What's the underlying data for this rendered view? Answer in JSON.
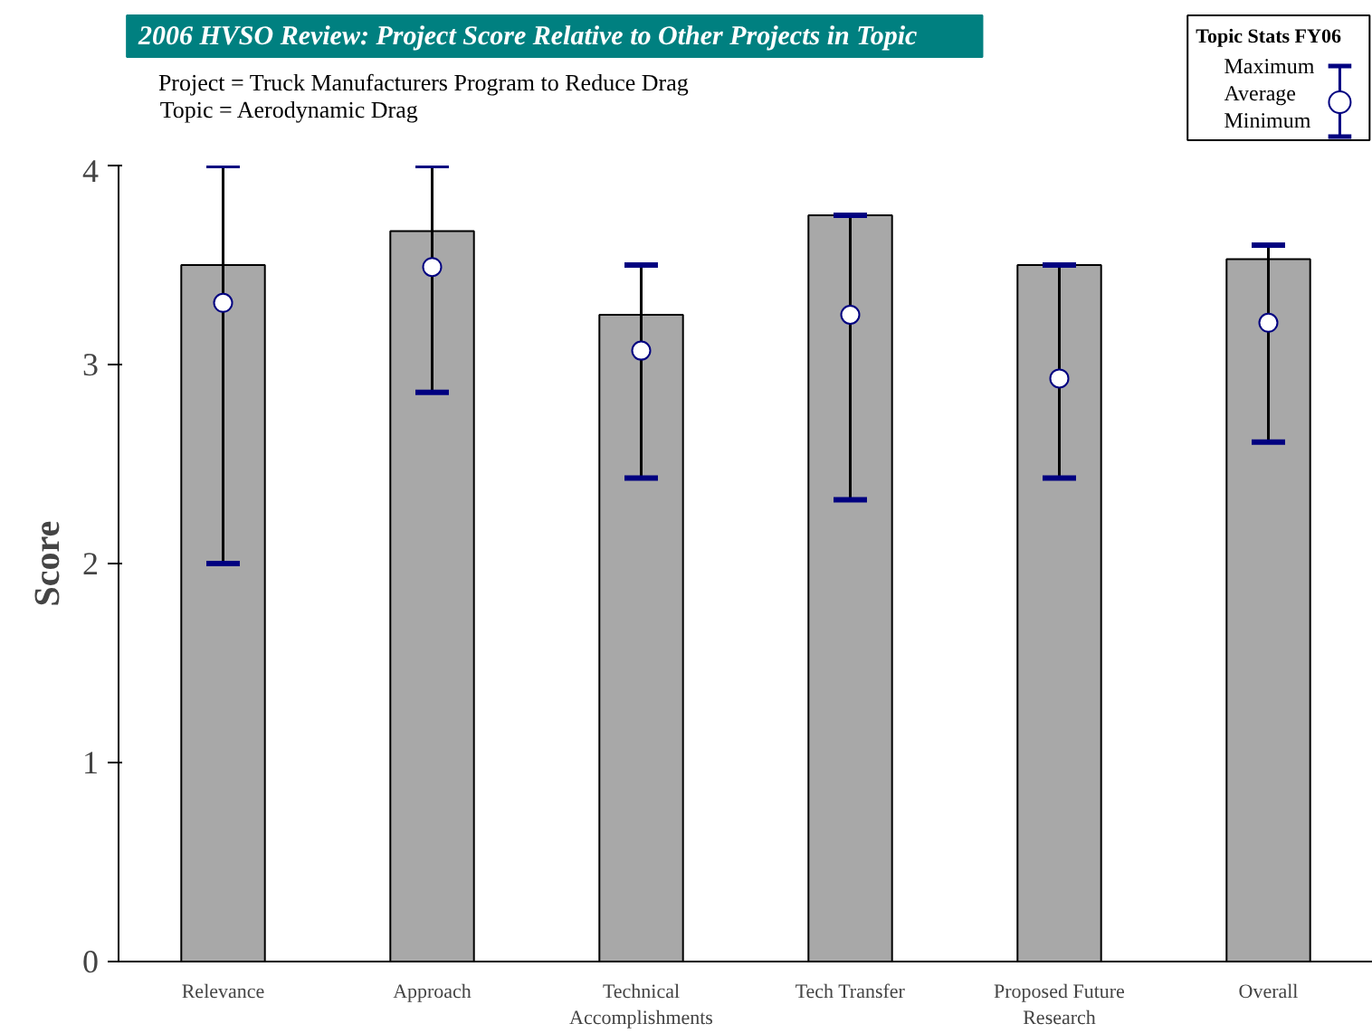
{
  "chart_data": {
    "type": "bar",
    "title": "2006 HVSO Review: Project Score Relative to Other Projects in Topic",
    "annotations": [
      "Project = Truck Manufacturers Program to Reduce Drag",
      "Topic = Aerodynamic Drag",
      "Maximum",
      "Minimum"
    ],
    "legend_title": "Topic Stats FY06",
    "ylabel": "Score",
    "categories": [
      "Relevance",
      "Approach",
      "Technical\nAccomplishments",
      "Tech Transfer",
      "Proposed Future\nResearch",
      "Overall"
    ],
    "ylim": [
      0,
      4
    ],
    "yticks": [
      0,
      1,
      2,
      3,
      4
    ],
    "grid": false,
    "legend": "top right",
    "series": [
      {
        "color": "#a8a8a8",
        "values": [
          3.5,
          3.67,
          3.25,
          3.75,
          3.5,
          3.53
        ]
      },
      {
        "type": "scatter",
        "name": "Average",
        "color": "#000080",
        "marker": "circle",
        "values": [
          3.31,
          3.49,
          3.07,
          3.25,
          2.93,
          3.21
        ],
        "errors": [
          [
            2.0,
            4.0
          ],
          [
            2.86,
            4.0
          ],
          [
            2.43,
            3.5
          ],
          [
            2.32,
            3.75
          ],
          [
            2.43,
            3.5
          ],
          [
            2.61,
            3.6
          ]
        ]
      }
    ]
  }
}
